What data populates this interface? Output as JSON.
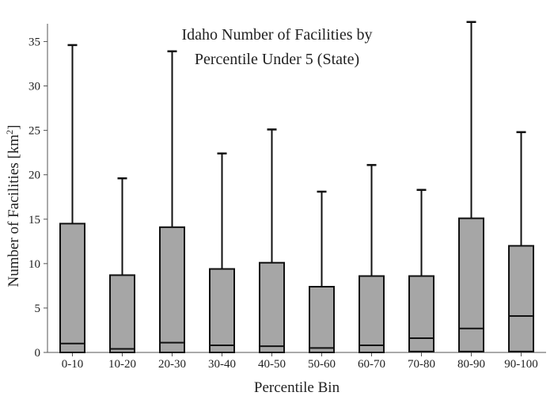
{
  "chart_data": {
    "type": "box",
    "title_lines": [
      "Idaho Number of Facilities by",
      "Percentile Under 5 (State)"
    ],
    "xlabel": "Percentile Bin",
    "ylabel_main": "Number of Facilities  [km",
    "ylabel_sup": "2",
    "ylabel_end": "]",
    "ylim": [
      0,
      37
    ],
    "yticks": [
      0,
      5,
      10,
      15,
      20,
      25,
      30,
      35
    ],
    "grid": false,
    "box_color": "#a6a6a6",
    "categories": [
      "0-10",
      "10-20",
      "20-30",
      "30-40",
      "40-50",
      "50-60",
      "60-70",
      "70-80",
      "80-90",
      "90-100"
    ],
    "boxes": [
      {
        "category": "0-10",
        "min": 0,
        "q1": 0,
        "median": 1.0,
        "q3": 14.5,
        "max": 34.6
      },
      {
        "category": "10-20",
        "min": 0,
        "q1": 0,
        "median": 0.4,
        "q3": 8.7,
        "max": 19.6
      },
      {
        "category": "20-30",
        "min": 0,
        "q1": 0,
        "median": 1.1,
        "q3": 14.1,
        "max": 33.9
      },
      {
        "category": "30-40",
        "min": 0,
        "q1": 0,
        "median": 0.8,
        "q3": 9.4,
        "max": 22.4
      },
      {
        "category": "40-50",
        "min": 0,
        "q1": 0,
        "median": 0.7,
        "q3": 10.1,
        "max": 25.1
      },
      {
        "category": "50-60",
        "min": 0,
        "q1": 0,
        "median": 0.5,
        "q3": 7.4,
        "max": 18.1
      },
      {
        "category": "60-70",
        "min": 0,
        "q1": 0,
        "median": 0.8,
        "q3": 8.6,
        "max": 21.1
      },
      {
        "category": "70-80",
        "min": 0,
        "q1": 0.1,
        "median": 1.6,
        "q3": 8.6,
        "max": 18.3
      },
      {
        "category": "80-90",
        "min": 0,
        "q1": 0.1,
        "median": 2.7,
        "q3": 15.1,
        "max": 37.2
      },
      {
        "category": "90-100",
        "min": 0,
        "q1": 0.1,
        "median": 4.1,
        "q3": 12.0,
        "max": 24.8
      }
    ]
  }
}
